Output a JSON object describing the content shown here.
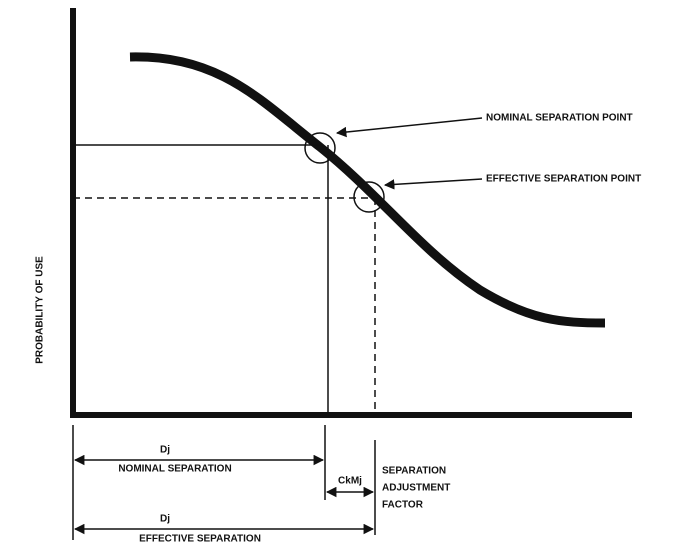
{
  "y_axis_label": "PROBABILITY OF USE",
  "annotations": {
    "nominal_point": "NOMINAL SEPARATION POINT",
    "effective_point": "EFFECTIVE SEPARATION POINT"
  },
  "dimensions": {
    "nominal": {
      "symbol": "Dj",
      "label": "NOMINAL SEPARATION"
    },
    "adjustment": {
      "symbol": "CkMj",
      "label": [
        "SEPARATION",
        "ADJUSTMENT",
        "FACTOR"
      ]
    },
    "effective": {
      "symbol": "Dj",
      "label": "EFFECTIVE SEPARATION"
    }
  }
}
